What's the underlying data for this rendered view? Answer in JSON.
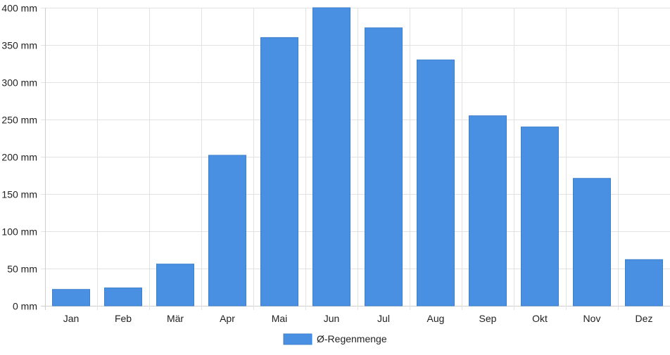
{
  "chart_data": {
    "type": "bar",
    "categories": [
      "Jan",
      "Feb",
      "Mär",
      "Apr",
      "Mai",
      "Jun",
      "Jul",
      "Aug",
      "Sep",
      "Okt",
      "Nov",
      "Dez"
    ],
    "series": [
      {
        "name": "Ø-Regenmenge",
        "values": [
          22,
          24,
          56,
          202,
          360,
          400,
          373,
          330,
          255,
          240,
          171,
          62
        ]
      }
    ],
    "unit_suffix": " mm",
    "ylim": [
      0,
      400
    ],
    "yticks": [
      0,
      50,
      100,
      150,
      200,
      250,
      300,
      350,
      400
    ],
    "ytick_labels": [
      "0 mm",
      "50 mm",
      "100 mm",
      "150 mm",
      "200 mm",
      "250 mm",
      "300 mm",
      "350 mm",
      "400 mm"
    ],
    "grid": true,
    "legend_position": "bottom-center",
    "colors": {
      "bar": "#4a90e2",
      "bar_border": "#3d7fcc"
    }
  }
}
